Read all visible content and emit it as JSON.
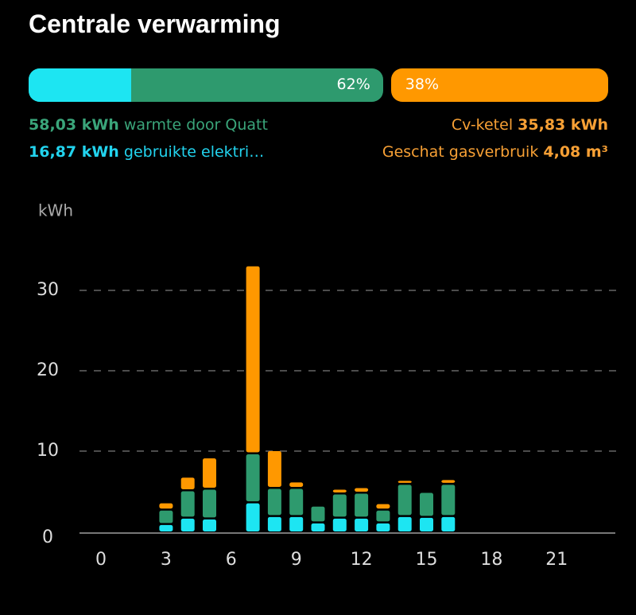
{
  "header": {
    "title": "Centrale verwarming"
  },
  "progress": {
    "heat_pump": {
      "value": 62,
      "label": "62%"
    },
    "boiler": {
      "value": 38,
      "label": "38%"
    },
    "electric_share": 29
  },
  "summary": {
    "heat_pump_heat": "58,03 kWh",
    "electricity": "16,87 kWh",
    "boiler_heat": "35,83 kWh",
    "gas_label": "Geschat gasverbruik",
    "gas": "4,08 m³"
  },
  "chart_data": {
    "type": "stacked_bar",
    "y_label": "kWh",
    "categories": [
      "0",
      null,
      null,
      "3",
      null,
      null,
      "6",
      null,
      null,
      "9",
      null,
      null,
      "12",
      null,
      null,
      "15",
      null,
      null,
      "18",
      null,
      null,
      "21",
      null,
      null
    ],
    "series": [
      {
        "name": "gebruikte elektri…",
        "color": "#1de5f2",
        "values": [
          null,
          null,
          null,
          0.8,
          1.6,
          1.5,
          null,
          3.5,
          1.8,
          1.8,
          1.0,
          1.6,
          1.6,
          1.0,
          1.8,
          1.7,
          1.8,
          null,
          null,
          null,
          null,
          null,
          null,
          null
        ]
      },
      {
        "name": "warmte door Quatt",
        "color": "#2e9a6e",
        "values": [
          null,
          null,
          null,
          1.8,
          3.4,
          3.7,
          null,
          6.1,
          3.5,
          3.5,
          2.1,
          3.0,
          3.1,
          1.6,
          4.0,
          3.1,
          4.0,
          null,
          null,
          null,
          null,
          null,
          null,
          null
        ]
      },
      {
        "name": "Cv-ketel",
        "color": "#ff9800",
        "values": [
          null,
          null,
          null,
          0.9,
          1.7,
          3.9,
          null,
          23.4,
          4.7,
          0.8,
          null,
          0.6,
          0.7,
          0.8,
          0.5,
          null,
          0.6,
          null,
          null,
          null,
          null,
          null,
          null,
          null
        ]
      }
    ],
    "ylim": [
      0,
      35
    ],
    "yticks": [
      0,
      10,
      20,
      30
    ],
    "grid": true
  }
}
